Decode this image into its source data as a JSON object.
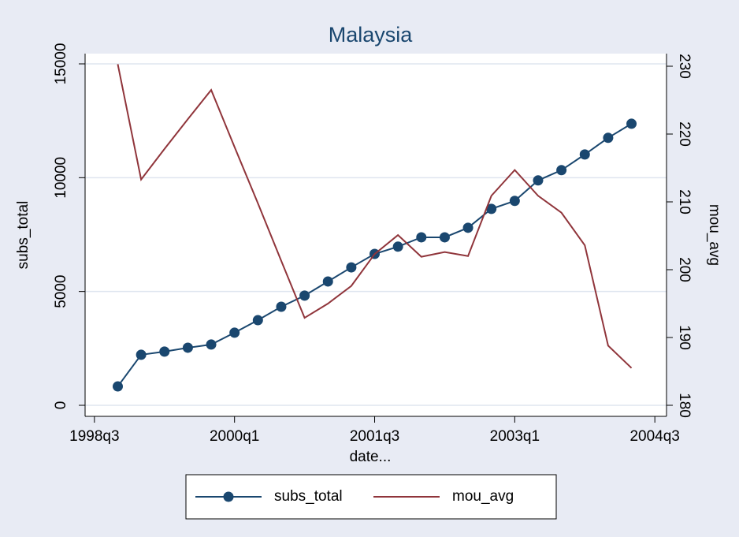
{
  "chart_data": {
    "type": "line",
    "title": "Malaysia",
    "x_label": "date...",
    "y_label": "subs_total",
    "y2_label": "mou_avg",
    "x": [
      155,
      156,
      157,
      158,
      159,
      160,
      161,
      162,
      163,
      164,
      165,
      166,
      167,
      168,
      169,
      170,
      171,
      172,
      173,
      174,
      175,
      176,
      177
    ],
    "xlim": [
      153.6,
      178.5
    ],
    "xticks": [
      {
        "value": 154,
        "label": "1998q3"
      },
      {
        "value": 160,
        "label": "2000q1"
      },
      {
        "value": 166,
        "label": "2001q3"
      },
      {
        "value": 172,
        "label": "2003q1"
      },
      {
        "value": 178,
        "label": "2004q3"
      }
    ],
    "ylim": [
      -485,
      15450
    ],
    "yticks": [
      0,
      5000,
      10000,
      15000
    ],
    "y2lim": [
      178.37,
      231.86
    ],
    "y2ticks": [
      180,
      190,
      200,
      210,
      220,
      230
    ],
    "grid": true,
    "series": [
      {
        "name": "subs_total",
        "color": "#1a476f",
        "markers": true,
        "values": [
          830,
          2220,
          2360,
          2530,
          2670,
          3190,
          3740,
          4330,
          4820,
          5440,
          6060,
          6650,
          6970,
          7380,
          7380,
          7800,
          8630,
          8980,
          9880,
          10330,
          11020,
          11750,
          12370
        ]
      },
      {
        "name": "mou_avg",
        "color": "#90353b",
        "axis": "y2",
        "markers": false,
        "values": [
          230.3,
          213.3,
          217.8,
          222.2,
          226.5,
          218.1,
          209.8,
          201.3,
          192.9,
          195.0,
          197.6,
          202.3,
          205.1,
          201.9,
          202.6,
          202.0,
          210.9,
          214.7,
          210.9,
          208.4,
          203.6,
          188.8,
          185.5
        ]
      }
    ]
  }
}
